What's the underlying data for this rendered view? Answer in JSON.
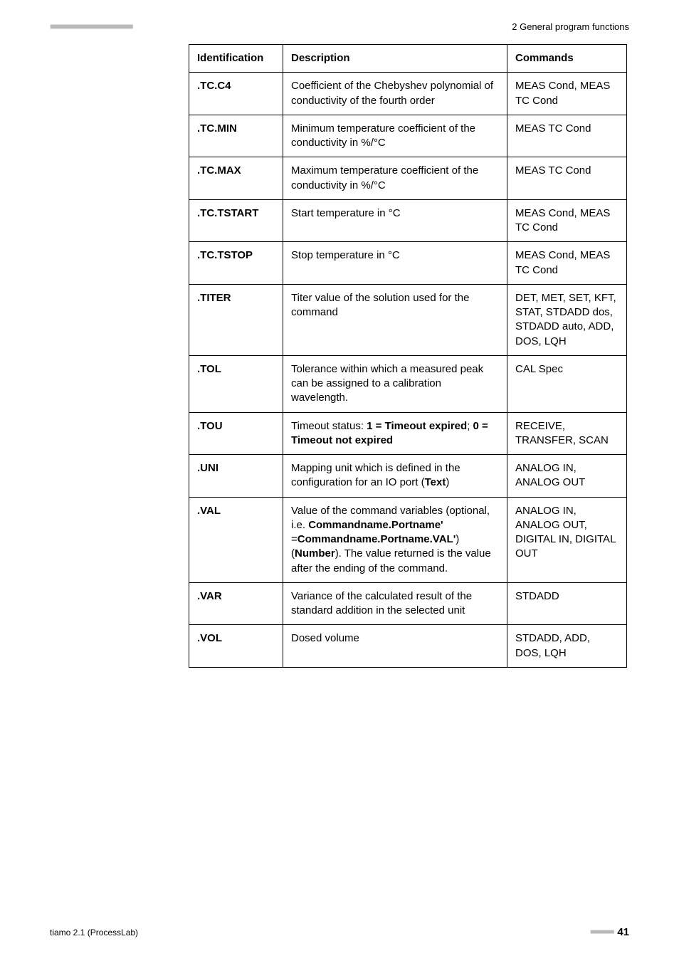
{
  "header": {
    "section": "2 General program functions",
    "dots": "■■■■■■■■■■■■■■■■■■■■■■"
  },
  "table": {
    "columns": [
      "Identification",
      "Description",
      "Commands"
    ],
    "rows": [
      {
        "id": ".TC.C4",
        "desc_segments": [
          {
            "t": "Coefficient of the Chebyshev polynomial of conductivity of the fourth order"
          }
        ],
        "cmd": "MEAS Cond, MEAS TC Cond"
      },
      {
        "id": ".TC.MIN",
        "desc_segments": [
          {
            "t": "Minimum temperature coefficient of the conductivity in %/°C"
          }
        ],
        "cmd": "MEAS TC Cond"
      },
      {
        "id": ".TC.MAX",
        "desc_segments": [
          {
            "t": "Maximum temperature coefficient of the conductivity in %/°C"
          }
        ],
        "cmd": "MEAS TC Cond"
      },
      {
        "id": ".TC.TSTART",
        "desc_segments": [
          {
            "t": "Start temperature in °C"
          }
        ],
        "cmd": "MEAS Cond, MEAS TC Cond"
      },
      {
        "id": ".TC.TSTOP",
        "desc_segments": [
          {
            "t": "Stop temperature in °C"
          }
        ],
        "cmd": "MEAS Cond, MEAS TC Cond"
      },
      {
        "id": ".TITER",
        "desc_segments": [
          {
            "t": "Titer value of the solution used for the command"
          }
        ],
        "cmd": "DET, MET, SET, KFT, STAT, STDADD dos, STDADD auto, ADD, DOS, LQH"
      },
      {
        "id": ".TOL",
        "desc_segments": [
          {
            "t": "Tolerance within which a measured peak can be assigned to a calibration wavelength."
          }
        ],
        "cmd": "CAL Spec"
      },
      {
        "id": ".TOU",
        "desc_segments": [
          {
            "t": "Timeout status: "
          },
          {
            "t": "1 = Timeout expired",
            "b": true
          },
          {
            "t": "; "
          },
          {
            "t": "0 = Timeout not expired",
            "b": true
          }
        ],
        "cmd": "RECEIVE, TRANSFER, SCAN"
      },
      {
        "id": ".UNI",
        "desc_segments": [
          {
            "t": "Mapping unit which is defined in the configuration for an IO port ("
          },
          {
            "t": "Text",
            "b": true
          },
          {
            "t": ")"
          }
        ],
        "cmd": "ANALOG IN, ANALOG OUT"
      },
      {
        "id": ".VAL",
        "desc_segments": [
          {
            "t": "Value of the command variables (optional, i.e. "
          },
          {
            "t": "Commandname.Portname'",
            "b": true
          },
          {
            "t": " ="
          },
          {
            "t": "Commandname.Portname.VAL'",
            "b": true
          },
          {
            "t": ") ("
          },
          {
            "t": "Number",
            "b": true
          },
          {
            "t": "). The value returned is the value after the ending of the command."
          }
        ],
        "cmd": "ANALOG IN, ANALOG OUT, DIGITAL IN, DIGITAL OUT"
      },
      {
        "id": ".VAR",
        "desc_segments": [
          {
            "t": "Variance of the calculated result of the standard addition in the selected unit"
          }
        ],
        "cmd": "STDADD"
      },
      {
        "id": ".VOL",
        "desc_segments": [
          {
            "t": "Dosed volume"
          }
        ],
        "cmd": "STDADD, ADD, DOS, LQH"
      }
    ]
  },
  "footer": {
    "left": "tiamo 2.1 (ProcessLab)",
    "dots": "■■■■■■■■",
    "page": "41"
  }
}
